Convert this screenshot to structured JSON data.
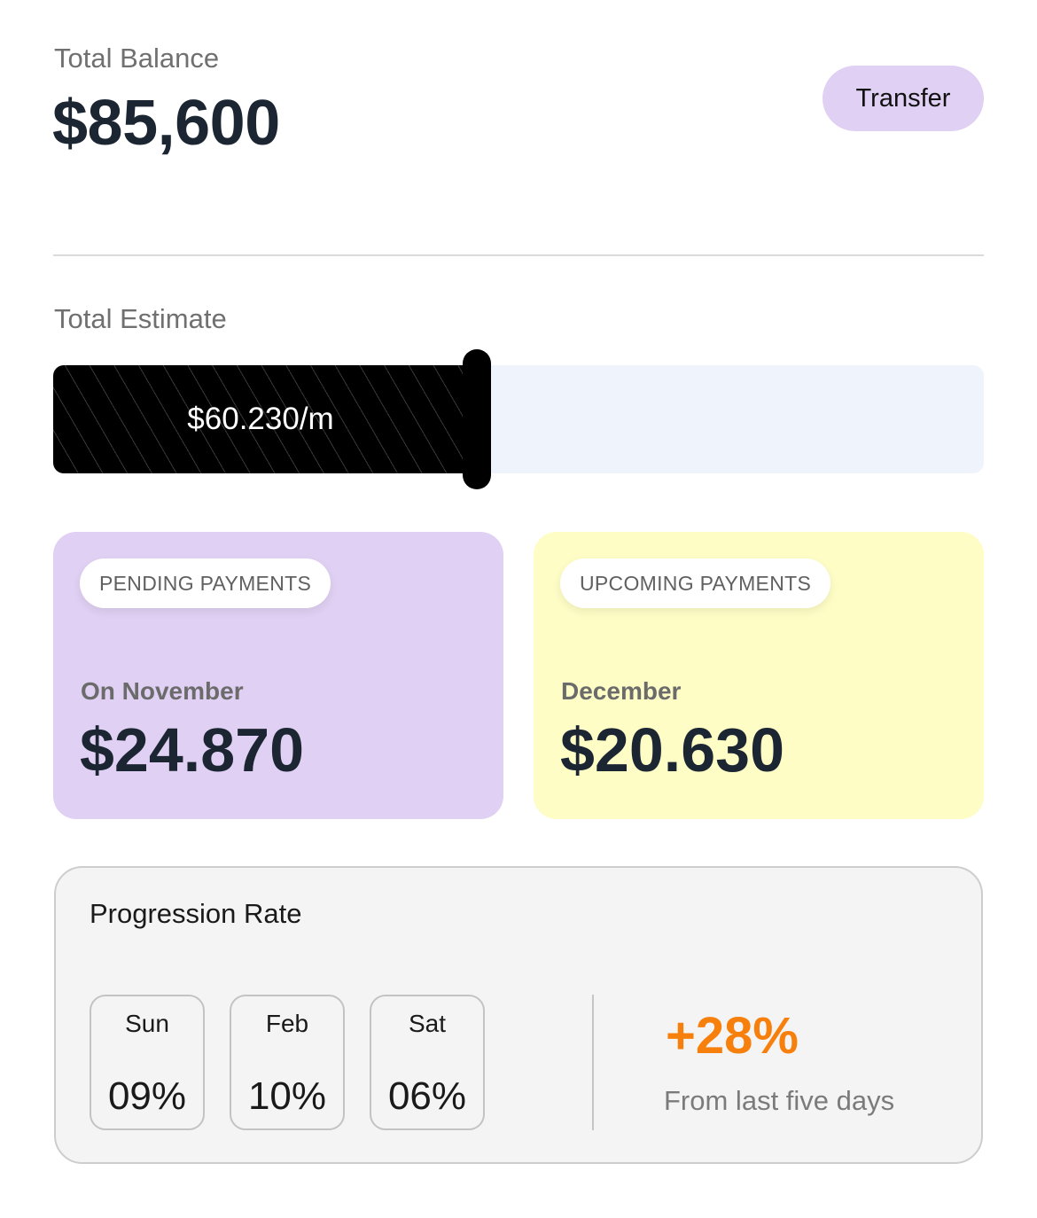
{
  "header": {
    "balance_label": "Total Balance",
    "balance_value": "$85,600",
    "transfer_label": "Transfer"
  },
  "estimate": {
    "label": "Total Estimate",
    "value": "$60.230/m",
    "fill_fraction": 0.455
  },
  "cards": [
    {
      "badge": "PENDING PAYMENTS",
      "period": "On November",
      "amount": "$24.870",
      "color": "#e0d0f3"
    },
    {
      "badge": "UPCOMING PAYMENTS",
      "period": "December",
      "amount": "$20.630",
      "color": "#fefdc6"
    }
  ],
  "progression": {
    "title": "Progression Rate",
    "rates": [
      {
        "label": "Sun",
        "value": "09%"
      },
      {
        "label": "Feb",
        "value": "10%"
      },
      {
        "label": "Sat",
        "value": "06%"
      }
    ],
    "change": "+28%",
    "change_caption": "From last five days",
    "change_color": "#f7800d"
  }
}
